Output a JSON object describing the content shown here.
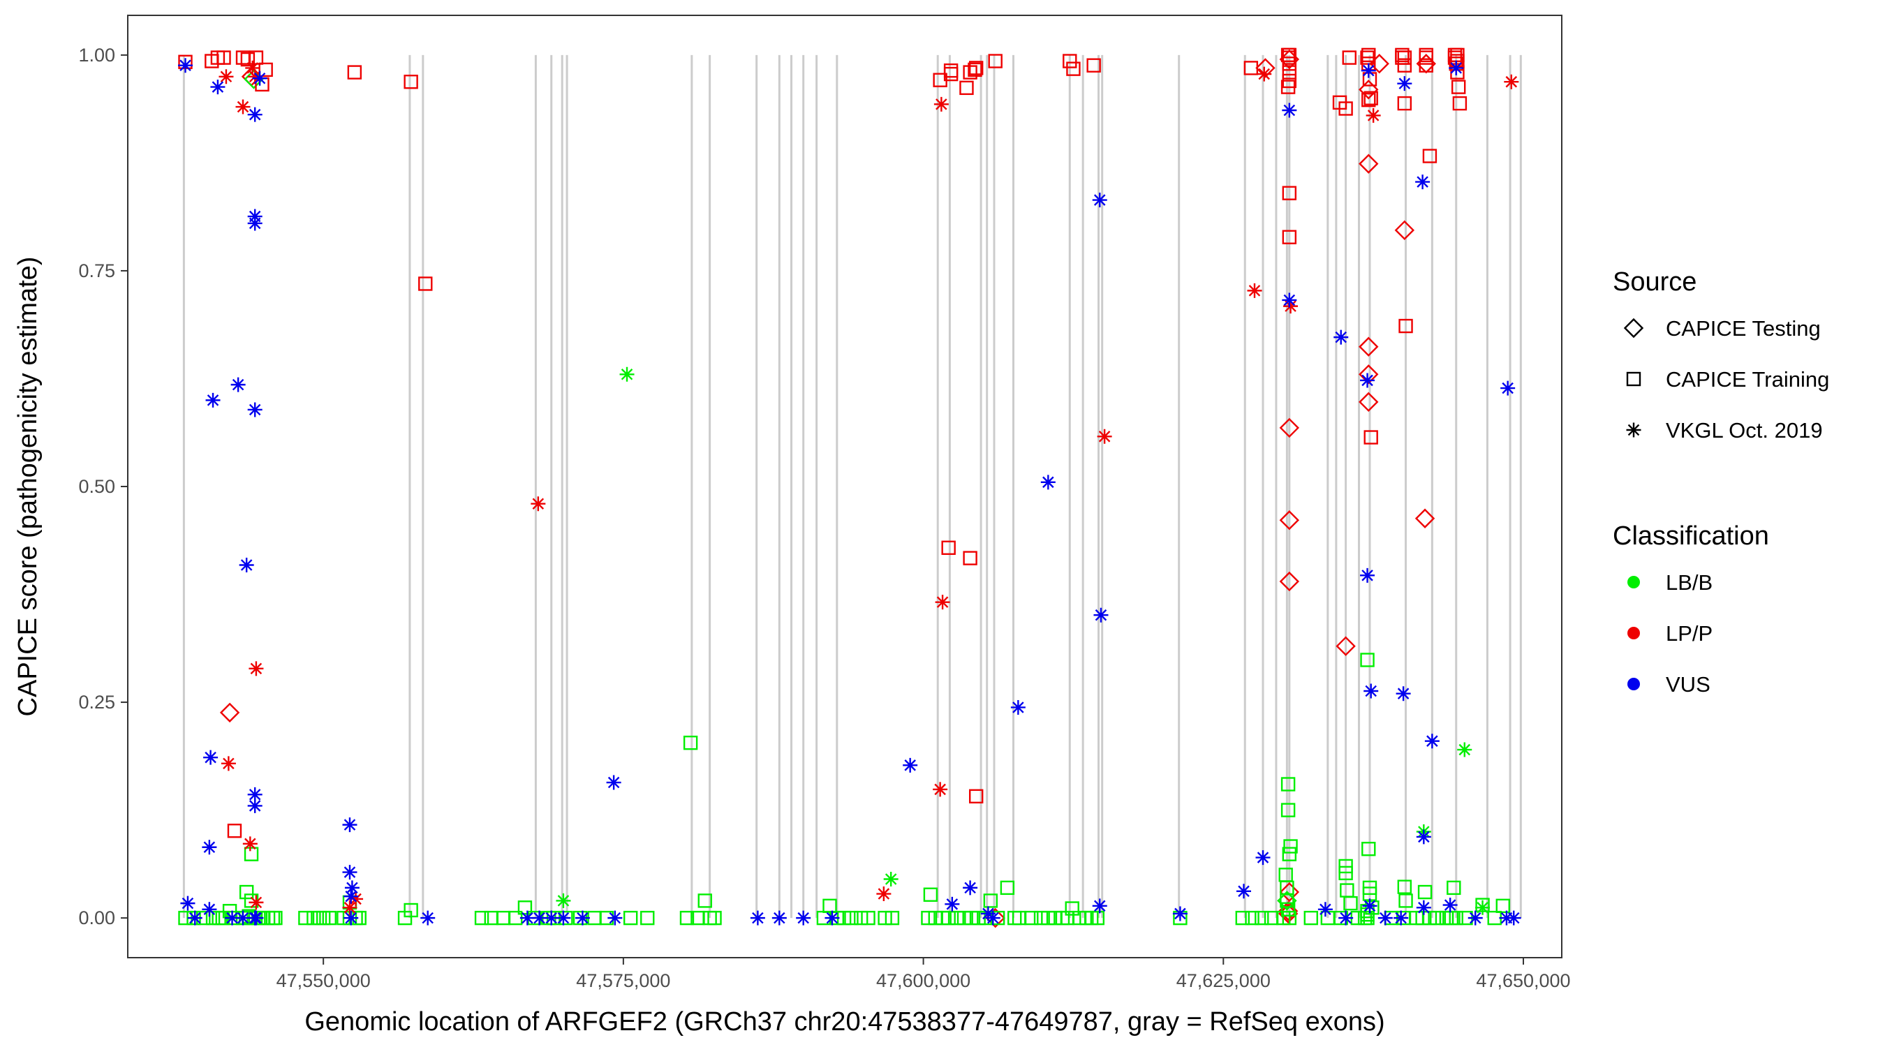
{
  "chart_data": {
    "type": "scatter",
    "xlabel": "Genomic location of ARFGEF2 (GRCh37 chr20:47538377-47649787, gray = RefSeq exons)",
    "ylabel": "CAPICE score (pathogenicity estimate)",
    "xlim": [
      47533700,
      47653200
    ],
    "ylim": [
      -0.046,
      1.046
    ],
    "x_ticks": [
      47550000,
      47575000,
      47600000,
      47625000,
      47650000
    ],
    "x_tick_labels": [
      "47,550,000",
      "47,575,000",
      "47,600,000",
      "47,625,000",
      "47,650,000"
    ],
    "y_ticks": [
      0,
      0.25,
      0.5,
      0.75,
      1.0
    ],
    "y_tick_labels": [
      "0.00",
      "0.25",
      "0.50",
      "0.75",
      "1.00"
    ],
    "exon_color": "#cccccc",
    "exons": [
      47538377,
      47557200,
      47558300,
      47567700,
      47569000,
      47569900,
      47570300,
      47580700,
      47582200,
      47586100,
      47588000,
      47589000,
      47590000,
      47591100,
      47592800,
      47601200,
      47602200,
      47604800,
      47605300,
      47605900,
      47607500,
      47612200,
      47613300,
      47614600,
      47614900,
      47621300,
      47626800,
      47628300,
      47629400,
      47630300,
      47630500,
      47633700,
      47634400,
      47635200,
      47636300,
      47637200,
      47640200,
      47642400,
      47644400,
      47647000,
      47648900,
      47649787
    ],
    "legend": {
      "source_title": "Source",
      "source": [
        {
          "label": "CAPICE Testing",
          "shape": "diamond"
        },
        {
          "label": "CAPICE Training",
          "shape": "square"
        },
        {
          "label": "VKGL Oct. 2019",
          "shape": "asterisk"
        }
      ],
      "class_title": "Classification",
      "classes": [
        {
          "label": "LB/B",
          "color": "#00ee00"
        },
        {
          "label": "LP/P",
          "color": "#ee0000"
        },
        {
          "label": "VUS",
          "color": "#0000ee"
        }
      ]
    },
    "series": [
      {
        "name": "CAPICE Testing / LP/P",
        "shape": "diamond",
        "color": "#ee0000",
        "x": [
          47542200,
          47544000,
          47628500,
          47630500,
          47630500,
          47630500,
          47630500,
          47630500,
          47630400,
          47630400,
          47635200,
          47637100,
          47637100,
          47637100,
          47637100,
          47637100,
          47638000,
          47640100,
          47641800,
          47641900,
          47606000
        ],
        "y": [
          0.238,
          0.975,
          0.985,
          0.995,
          0.568,
          0.461,
          0.39,
          0.03,
          0.008,
          0.005,
          0.315,
          0.874,
          0.662,
          0.63,
          0.598,
          0.96,
          0.99,
          0.797,
          0.463,
          0.99,
          0.0
        ]
      },
      {
        "name": "CAPICE Testing / LB/B",
        "shape": "diamond",
        "color": "#00ee00",
        "x": [
          47544200,
          47630300
        ],
        "y": [
          0.972,
          0.02
        ]
      },
      {
        "name": "CAPICE Training / LP/P",
        "shape": "square",
        "color": "#ee0000",
        "x": [
          47538500,
          47540700,
          47541200,
          47541700,
          47543300,
          47543700,
          47544400,
          47544900,
          47545200,
          47552600,
          47557300,
          47558500,
          47542600,
          47601400,
          47602300,
          47602300,
          47603600,
          47603900,
          47604300,
          47604400,
          47606000,
          47612200,
          47612500,
          47614200,
          47602100,
          47603900,
          47604400,
          47627300,
          47630400,
          47630500,
          47630500,
          47630500,
          47630500,
          47630500,
          47630500,
          47634700,
          47635200,
          47635500,
          47637000,
          47637100,
          47637200,
          47637300,
          47637300,
          47639900,
          47640100,
          47640100,
          47640100,
          47640200,
          47641900,
          47641900,
          47642200,
          47644300,
          47644400,
          47644500,
          47644600,
          47644700,
          47630400,
          47630500,
          47637100,
          47639900,
          47641900,
          47644300,
          47644500,
          47644500,
          47637100
        ],
        "y": [
          0.992,
          0.993,
          0.997,
          0.997,
          0.997,
          0.995,
          0.997,
          0.966,
          0.983,
          0.98,
          0.969,
          0.735,
          0.101,
          0.971,
          0.978,
          0.982,
          0.962,
          0.98,
          0.983,
          0.985,
          0.993,
          0.993,
          0.984,
          0.988,
          0.429,
          0.417,
          0.141,
          0.985,
          0.963,
          0.97,
          0.98,
          0.99,
          0.997,
          0.84,
          0.789,
          0.945,
          0.938,
          0.997,
          0.997,
          0.99,
          0.972,
          0.95,
          0.557,
          0.997,
          0.997,
          0.988,
          0.944,
          0.686,
          0.997,
          0.988,
          0.883,
          0.997,
          0.99,
          0.98,
          0.963,
          0.944,
          1.0,
          1.0,
          1.0,
          1.0,
          1.0,
          1.0,
          1.0,
          0.993,
          0.948
        ]
      },
      {
        "name": "CAPICE Training / LB/B",
        "shape": "square",
        "color": "#00ee00",
        "x": [
          47538500,
          47539200,
          47540000,
          47540800,
          47541300,
          47541600,
          47542200,
          47542500,
          47543300,
          47543800,
          47544200,
          47544600,
          47545000,
          47545400,
          47545800,
          47546000,
          47548500,
          47549200,
          47549700,
          47550000,
          47550500,
          47551700,
          47552200,
          47552700,
          47553000,
          47556800,
          47557300,
          47563200,
          47564000,
          47565000,
          47566000,
          47566800,
          47567600,
          47568800,
          47569200,
          47570200,
          47571400,
          47572600,
          47573600,
          47575600,
          47577000,
          47580300,
          47580600,
          47581200,
          47581800,
          47582200,
          47582600,
          47591700,
          47592200,
          47592800,
          47593400,
          47594000,
          47594800,
          47595400,
          47596800,
          47597400,
          47600400,
          47600600,
          47601000,
          47601600,
          47602100,
          47602800,
          47603400,
          47604000,
          47604600,
          47605200,
          47605600,
          47606200,
          47607000,
          47607600,
          47608000,
          47609000,
          47609800,
          47610400,
          47611000,
          47611600,
          47612000,
          47612400,
          47613000,
          47613600,
          47614000,
          47614500,
          47621400,
          47626600,
          47627400,
          47628200,
          47629000,
          47630000,
          47630400,
          47630400,
          47630600,
          47630500,
          47630300,
          47632300,
          47633700,
          47634800,
          47635200,
          47635200,
          47635300,
          47635600,
          47636200,
          47636800,
          47637000,
          47637100,
          47637200,
          47637200,
          47637400,
          47639000,
          47640000,
          47640100,
          47640200,
          47641100,
          47641600,
          47641800,
          47642200,
          47642800,
          47643600,
          47644000,
          47644200,
          47645200,
          47646600,
          47647600,
          47648300,
          47643600,
          47544000,
          47543600,
          47544000,
          47543800,
          47552200,
          47630200,
          47630300,
          47630400,
          47630500,
          47637000,
          47637000,
          47637000,
          47644400
        ],
        "y": [
          0.0,
          0.0,
          0.0,
          0.0,
          0.0,
          0.0,
          0.008,
          0.0,
          0.0,
          0.0,
          0.0,
          0.0,
          0.0,
          0.0,
          0.0,
          0.0,
          0.0,
          0.0,
          0.0,
          0.0,
          0.0,
          0.0,
          0.0,
          0.0,
          0.0,
          0.0,
          0.009,
          0.0,
          0.0,
          0.0,
          0.0,
          0.012,
          0.0,
          0.0,
          0.0,
          0.0,
          0.0,
          0.0,
          0.0,
          0.0,
          0.0,
          0.0,
          0.203,
          0.0,
          0.02,
          0.0,
          0.0,
          0.0,
          0.014,
          0.0,
          0.0,
          0.0,
          0.0,
          0.0,
          0.0,
          0.0,
          0.0,
          0.027,
          0.0,
          0.0,
          0.0,
          0.0,
          0.0,
          0.0,
          0.0,
          0.0,
          0.02,
          0.0,
          0.035,
          0.0,
          0.0,
          0.0,
          0.0,
          0.0,
          0.0,
          0.0,
          0.0,
          0.011,
          0.0,
          0.0,
          0.0,
          0.0,
          0.0,
          0.0,
          0.0,
          0.0,
          0.0,
          0.0,
          0.155,
          0.125,
          0.083,
          0.074,
          0.035,
          0.0,
          0.0,
          0.0,
          0.06,
          0.052,
          0.032,
          0.017,
          0.0,
          0.0,
          0.0,
          0.08,
          0.035,
          0.028,
          0.012,
          0.0,
          0.0,
          0.036,
          0.02,
          0.0,
          0.0,
          0.03,
          0.0,
          0.0,
          0.0,
          0.0,
          0.035,
          0.0,
          0.015,
          0.0,
          0.014,
          0.0,
          0.02,
          0.03,
          0.074,
          0.002,
          0.018,
          0.05,
          0.02,
          0.01,
          0.0,
          0.299,
          0.008,
          0.004,
          0.0
        ]
      },
      {
        "name": "VKGL Oct. 2019 / LP/P",
        "shape": "asterisk",
        "color": "#ee0000",
        "x": [
          47541900,
          47543300,
          47544100,
          47544300,
          47544400,
          47542100,
          47544400,
          47543900,
          47552700,
          47552200,
          47567900,
          47596700,
          47601500,
          47601600,
          47601400,
          47615100,
          47627600,
          47628400,
          47630600,
          47637500,
          47649000
        ],
        "y": [
          0.975,
          0.94,
          0.985,
          0.975,
          0.289,
          0.179,
          0.018,
          0.086,
          0.022,
          0.012,
          0.48,
          0.028,
          0.943,
          0.366,
          0.149,
          0.558,
          0.727,
          0.978,
          0.709,
          0.93,
          0.969
        ]
      },
      {
        "name": "VKGL Oct. 2019 / LB/B",
        "shape": "asterisk",
        "color": "#00ee00",
        "x": [
          47575300,
          47597300,
          47641700,
          47645100,
          47646600,
          47570000
        ],
        "y": [
          0.63,
          0.045,
          0.1,
          0.195,
          0.012,
          0.02
        ]
      },
      {
        "name": "VKGL Oct. 2019 / VUS",
        "shape": "asterisk",
        "color": "#0000ee",
        "x": [
          47538500,
          47541200,
          47542900,
          47544300,
          47544300,
          47544300,
          47544700,
          47540800,
          47543600,
          47544300,
          47544300,
          47544300,
          47540600,
          47540500,
          47544300,
          47544300,
          47552200,
          47552200,
          47552400,
          47552300,
          47574200,
          47598900,
          47602400,
          47603900,
          47607900,
          47610400,
          47614700,
          47614800,
          47614700,
          47621400,
          47626700,
          47628300,
          47630500,
          47630500,
          47634800,
          47637000,
          47637000,
          47637100,
          47637300,
          47640000,
          47640100,
          47641600,
          47641700,
          47642400,
          47644400,
          47648700,
          47538700,
          47539300,
          47540500,
          47542400,
          47543300,
          47544400,
          47552300,
          47558700,
          47567000,
          47568000,
          47569000,
          47570000,
          47571600,
          47574300,
          47586200,
          47588000,
          47590000,
          47592400,
          47605400,
          47605800,
          47633500,
          47635200,
          47637200,
          47638500,
          47639800,
          47641700,
          47643900,
          47646000,
          47648600,
          47649200
        ],
        "y": [
          0.988,
          0.963,
          0.618,
          0.931,
          0.813,
          0.805,
          0.973,
          0.6,
          0.409,
          0.589,
          0.143,
          0.13,
          0.186,
          0.082,
          0.0,
          0.0,
          0.108,
          0.053,
          0.035,
          0.025,
          0.157,
          0.177,
          0.016,
          0.035,
          0.244,
          0.505,
          0.832,
          0.351,
          0.014,
          0.005,
          0.031,
          0.07,
          0.936,
          0.716,
          0.673,
          0.623,
          0.397,
          0.982,
          0.263,
          0.26,
          0.967,
          0.853,
          0.094,
          0.205,
          0.985,
          0.614,
          0.017,
          0.0,
          0.01,
          0.0,
          0.0,
          0.0,
          0.0,
          0.0,
          0.0,
          0.0,
          0.0,
          0.0,
          0.0,
          0.0,
          0.0,
          0.0,
          0.0,
          0.0,
          0.005,
          0.0,
          0.01,
          0.0,
          0.014,
          0.0,
          0.0,
          0.012,
          0.015,
          0.0,
          0.0,
          0.0
        ]
      }
    ]
  }
}
